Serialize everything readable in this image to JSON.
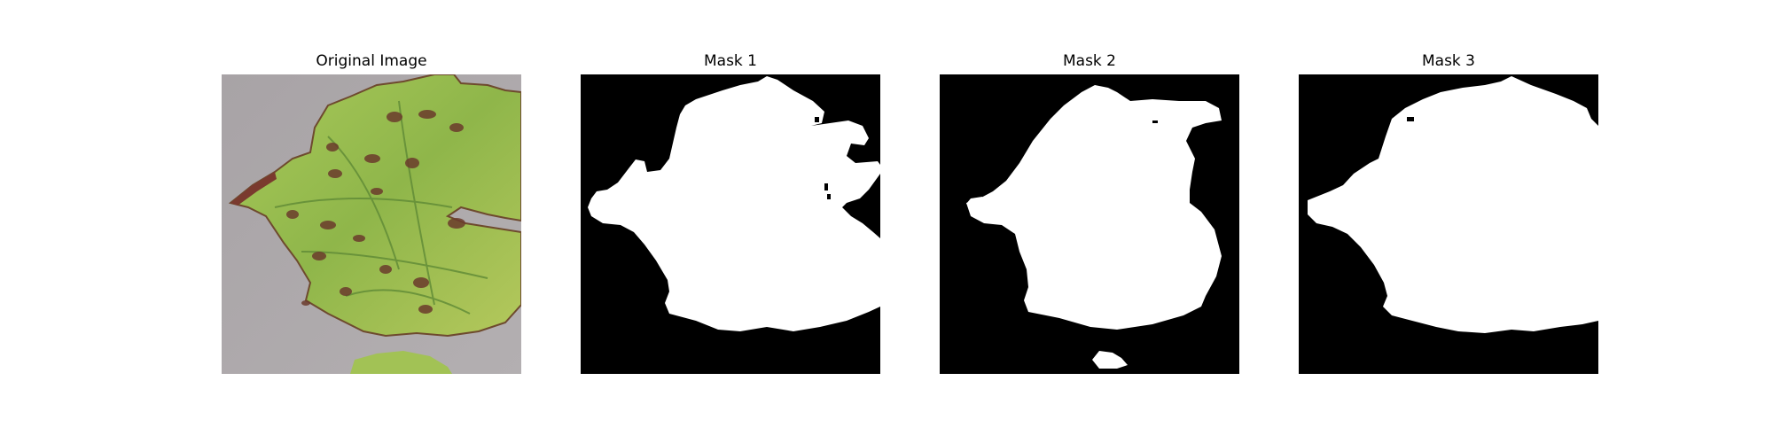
{
  "figure": {
    "panels": [
      {
        "title": "Original Image"
      },
      {
        "title": "Mask 1"
      },
      {
        "title": "Mask 2"
      },
      {
        "title": "Mask 3"
      }
    ],
    "colors": {
      "background": "#ffffff",
      "mask_foreground": "#ffffff",
      "mask_background": "#000000",
      "leaf_green": "#9cbf4f",
      "leaf_dark_green": "#5f8a36",
      "lesion_brown": "#6b3b2c",
      "table_gray": "#a9a5a7"
    }
  }
}
